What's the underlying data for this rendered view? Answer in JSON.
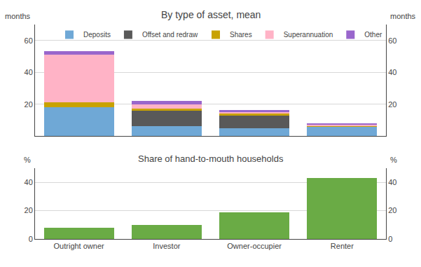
{
  "chart_data": [
    {
      "type": "bar",
      "title": "By type of asset, mean",
      "ylabel": "months",
      "y2label": "months",
      "categories": [
        "Outright owner",
        "Investor",
        "Owner-occupier",
        "Renter"
      ],
      "series": [
        {
          "name": "Deposits",
          "color": "#6fa8d6",
          "values": [
            18,
            6,
            5,
            6
          ]
        },
        {
          "name": "Offset and redraw",
          "color": "#595959",
          "values": [
            0,
            10,
            8,
            0
          ]
        },
        {
          "name": "Shares",
          "color": "#c8a200",
          "values": [
            3,
            1,
            1,
            0.5
          ]
        },
        {
          "name": "Superannuation",
          "color": "#ffb3c6",
          "values": [
            30,
            3,
            1,
            0.5
          ]
        },
        {
          "name": "Other",
          "color": "#9966cc",
          "values": [
            2.5,
            2,
            1.5,
            1
          ]
        }
      ],
      "stacked": true,
      "ylim": [
        0,
        70
      ],
      "yticks": [
        20,
        40,
        60
      ],
      "y2lim": [
        0,
        70
      ],
      "y2ticks": [
        20,
        40,
        60
      ],
      "grid": true,
      "legend": "upper right",
      "tick_labels": "y"
    },
    {
      "type": "bar",
      "title": "Share of hand-to-mouth households",
      "ylabel": "%",
      "y2label": "%",
      "categories": [
        "Outright owner",
        "Investor",
        "Owner-occupier",
        "Renter"
      ],
      "values": [
        8,
        10,
        19,
        43
      ],
      "color": "#6aab45",
      "ylim": [
        0,
        50
      ],
      "yticks": [
        0,
        20,
        40
      ],
      "y2lim": [
        0,
        50
      ],
      "y2ticks": [
        0,
        20,
        40
      ],
      "grid": true
    }
  ]
}
